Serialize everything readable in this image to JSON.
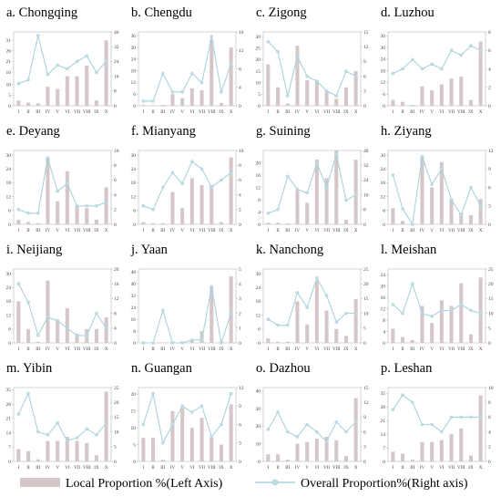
{
  "legend": {
    "bar_label": "Local Proportion %(Left Axis)",
    "line_label": "Overall Proportion%(Right axis)",
    "bar_color": "#d5c7c8",
    "line_color": "#a9d3dc",
    "marker_color": "#c3dde4"
  },
  "chart_data": [
    {
      "type": "bar+line",
      "title": "a. Chongqing",
      "categories": [
        "I",
        "II",
        "III",
        "IV",
        "V",
        "VI",
        "VII",
        "VIII",
        "IX",
        "X"
      ],
      "left_ticks": [
        0,
        5,
        10,
        16,
        21,
        26,
        31
      ],
      "right_ticks": [
        0,
        8,
        16,
        24,
        32,
        40
      ],
      "left_max": 35,
      "right_max": 40,
      "bars": [
        2.5,
        1.5,
        1.2,
        9,
        8,
        14,
        14,
        19,
        2.5,
        31
      ],
      "line": [
        12,
        14,
        38,
        17,
        22,
        20,
        24,
        27,
        18,
        24
      ]
    },
    {
      "type": "bar+line",
      "title": "b. Chengdu",
      "categories": [
        "I",
        "II",
        "III",
        "IV",
        "V",
        "VI",
        "VII",
        "VIII",
        "IX",
        "X"
      ],
      "left_ticks": [
        0,
        6,
        12,
        18,
        24,
        30,
        36
      ],
      "right_ticks": [
        0,
        4,
        8,
        12,
        16
      ],
      "left_max": 38,
      "right_max": 16,
      "bars": [
        0.5,
        0.3,
        0.5,
        6,
        4,
        9,
        8,
        34,
        1.5,
        30
      ],
      "line": [
        1,
        1,
        7,
        3,
        3,
        7,
        5,
        15,
        3,
        9
      ]
    },
    {
      "type": "bar+line",
      "title": "c. Zigong",
      "categories": [
        "I",
        "II",
        "III",
        "IV",
        "V",
        "VI",
        "VII",
        "VIII",
        "IX",
        "X"
      ],
      "left_ticks": [
        0,
        5,
        10,
        15,
        20,
        25,
        30
      ],
      "right_ticks": [
        0,
        3,
        6,
        9,
        12,
        15
      ],
      "left_max": 32,
      "right_max": 15,
      "bars": [
        18,
        8,
        1,
        26,
        11,
        11,
        6,
        3,
        8,
        15
      ],
      "line": [
        13,
        11,
        2,
        10,
        6,
        5,
        3,
        2,
        7,
        6
      ]
    },
    {
      "type": "bar+line",
      "title": "d. Luzhou",
      "categories": [
        "I",
        "II",
        "III",
        "IV",
        "V",
        "VI",
        "VII",
        "VIII",
        "IX",
        "X"
      ],
      "left_ticks": [
        0,
        6,
        12,
        18,
        24,
        30,
        36
      ],
      "right_ticks": [
        0,
        2,
        4,
        6,
        8
      ],
      "left_max": 38,
      "right_max": 8,
      "bars": [
        3,
        2,
        0.5,
        10,
        8,
        11,
        14,
        15,
        3,
        33
      ],
      "line": [
        3.5,
        4,
        5,
        4,
        4.5,
        4,
        6,
        5.5,
        6.5,
        6
      ]
    },
    {
      "type": "bar+line",
      "title": "e. Deyang",
      "categories": [
        "I",
        "II",
        "III",
        "IV",
        "V",
        "VI",
        "VII",
        "VIII",
        "IX",
        "X"
      ],
      "left_ticks": [
        0,
        6,
        12,
        18,
        24,
        30
      ],
      "right_ticks": [
        0,
        2,
        4,
        6,
        8,
        10
      ],
      "left_max": 32,
      "right_max": 10,
      "bars": [
        2,
        1,
        0.5,
        29,
        10,
        23,
        8,
        7,
        2,
        16
      ],
      "line": [
        2,
        1.5,
        1.5,
        9,
        4.5,
        5.5,
        2.5,
        2.5,
        2.5,
        3
      ]
    },
    {
      "type": "bar+line",
      "title": "f. Mianyang",
      "categories": [
        "I",
        "II",
        "III",
        "IV",
        "V",
        "VI",
        "VII",
        "VIII",
        "IX",
        "X"
      ],
      "left_ticks": [
        0,
        6,
        12,
        18,
        24,
        30
      ],
      "right_ticks": [
        0,
        2,
        4,
        6,
        8,
        10
      ],
      "left_max": 32,
      "right_max": 10,
      "bars": [
        1,
        0.5,
        0.5,
        14,
        7,
        20,
        17,
        17,
        1,
        29
      ],
      "line": [
        2.5,
        2,
        5,
        7,
        5.5,
        8.5,
        7.5,
        5,
        6,
        7
      ]
    },
    {
      "type": "bar+line",
      "title": "g. Suining",
      "categories": [
        "I",
        "II",
        "III",
        "IV",
        "V",
        "VI",
        "VII",
        "VIII",
        "IX",
        "X"
      ],
      "left_ticks": [
        0,
        4,
        8,
        12,
        16,
        20
      ],
      "right_ticks": [
        0,
        8,
        16,
        24,
        32,
        40
      ],
      "left_max": 24,
      "right_max": 40,
      "bars": [
        0.5,
        0.5,
        0.3,
        11,
        7,
        21,
        15,
        24,
        1.5,
        21
      ],
      "line": [
        6,
        8,
        26,
        19,
        17,
        33,
        20,
        38,
        13,
        16
      ]
    },
    {
      "type": "bar+line",
      "title": "h. Ziyang",
      "categories": [
        "I",
        "II",
        "III",
        "IV",
        "V",
        "VI",
        "VII",
        "VIII",
        "IX",
        "X"
      ],
      "left_ticks": [
        0,
        6,
        12,
        18,
        24,
        30
      ],
      "right_ticks": [
        0,
        3,
        6,
        9,
        12
      ],
      "left_max": 32,
      "right_max": 12,
      "bars": [
        7,
        1.5,
        0.3,
        29,
        16,
        27,
        11,
        5,
        4,
        11
      ],
      "line": [
        8,
        2.5,
        0,
        11,
        6.5,
        9,
        4,
        1.5,
        6,
        3
      ]
    },
    {
      "type": "bar+line",
      "title": "i. Neijiang",
      "categories": [
        "I",
        "II",
        "III",
        "IV",
        "V",
        "VI",
        "VII",
        "VIII",
        "IX",
        "X"
      ],
      "left_ticks": [
        0,
        6,
        12,
        18,
        24,
        30
      ],
      "right_ticks": [
        0,
        4,
        8,
        12,
        16,
        20
      ],
      "left_max": 32,
      "right_max": 20,
      "bars": [
        18,
        6,
        0.5,
        27,
        10,
        15,
        4,
        6,
        6,
        11
      ],
      "line": [
        16,
        11,
        2,
        7,
        6,
        4,
        2,
        2,
        8,
        4
      ]
    },
    {
      "type": "bar+line",
      "title": "j. Yaan",
      "categories": [
        "I",
        "II",
        "III",
        "IV",
        "V",
        "VI",
        "VII",
        "VIII",
        "IX",
        "X"
      ],
      "left_ticks": [
        0,
        8,
        16,
        24,
        32,
        40,
        48
      ],
      "right_ticks": [
        0,
        1,
        2,
        3,
        4,
        5
      ],
      "left_max": 50,
      "right_max": 5,
      "bars": [
        0.5,
        0.3,
        0.3,
        1,
        1,
        2,
        8,
        38,
        1,
        45
      ],
      "line": [
        0,
        0,
        2.2,
        0,
        0,
        0.2,
        0.2,
        3.8,
        0,
        2
      ]
    },
    {
      "type": "bar+line",
      "title": "k. Nanchong",
      "categories": [
        "I",
        "II",
        "III",
        "IV",
        "V",
        "VI",
        "VII",
        "VIII",
        "IX",
        "X"
      ],
      "left_ticks": [
        0,
        6,
        12,
        18,
        24,
        30
      ],
      "right_ticks": [
        0,
        5,
        10,
        15,
        20,
        25
      ],
      "left_max": 32,
      "right_max": 25,
      "bars": [
        2,
        0.5,
        0.5,
        18,
        8,
        27,
        14,
        6,
        3,
        19
      ],
      "line": [
        8,
        6,
        6,
        17,
        12,
        22,
        16,
        7,
        10,
        10
      ]
    },
    {
      "type": "bar+line",
      "title": "l. Meishan",
      "categories": [
        "I",
        "II",
        "III",
        "IV",
        "V",
        "VI",
        "VII",
        "VIII",
        "IX",
        "X"
      ],
      "left_ticks": [
        0,
        4,
        8,
        12,
        16,
        20,
        24
      ],
      "right_ticks": [
        0,
        5,
        10,
        15,
        20,
        25
      ],
      "left_max": 26,
      "right_max": 25,
      "bars": [
        5,
        2,
        1,
        13,
        7,
        15,
        13,
        21,
        3,
        23
      ],
      "line": [
        13,
        10,
        20,
        10,
        9,
        11,
        11,
        13,
        11,
        10
      ]
    },
    {
      "type": "bar+line",
      "title": "m. Yibin",
      "categories": [
        "I",
        "II",
        "III",
        "IV",
        "V",
        "VI",
        "VII",
        "VIII",
        "IX",
        "X"
      ],
      "left_ticks": [
        0,
        7,
        14,
        21,
        28,
        35
      ],
      "right_ticks": [
        0,
        5,
        10,
        15,
        20,
        25
      ],
      "left_max": 36,
      "right_max": 25,
      "bars": [
        6,
        5,
        1,
        10,
        10,
        12,
        10,
        9,
        3,
        34
      ],
      "line": [
        16,
        23,
        10,
        9,
        13,
        7,
        8,
        11,
        9,
        13
      ]
    },
    {
      "type": "bar+line",
      "title": "n. Guangan",
      "categories": [
        "I",
        "II",
        "III",
        "IV",
        "V",
        "VI",
        "VII",
        "VIII",
        "IX",
        "X"
      ],
      "left_ticks": [
        0,
        5,
        10,
        15,
        20
      ],
      "right_ticks": [
        0,
        3,
        6,
        9,
        12
      ],
      "left_max": 22,
      "right_max": 12,
      "bars": [
        7,
        7,
        0.5,
        15,
        16,
        10,
        13,
        7,
        5,
        17
      ],
      "line": [
        6,
        11,
        3,
        6,
        9,
        8,
        9,
        4,
        6,
        11
      ]
    },
    {
      "type": "bar+line",
      "title": "o. Dazhou",
      "categories": [
        "I",
        "II",
        "III",
        "IV",
        "V",
        "VI",
        "VII",
        "VIII",
        "IX",
        "X"
      ],
      "left_ticks": [
        0,
        10,
        20,
        30,
        40
      ],
      "right_ticks": [
        0,
        3,
        6,
        9,
        12,
        15
      ],
      "left_max": 42,
      "right_max": 15,
      "bars": [
        4,
        4,
        1,
        10,
        11,
        13,
        14,
        12,
        3,
        36
      ],
      "line": [
        6.5,
        10,
        6,
        5,
        7.5,
        6,
        4,
        8,
        6,
        8
      ]
    },
    {
      "type": "bar+line",
      "title": "p. Leshan",
      "categories": [
        "I",
        "II",
        "III",
        "IV",
        "V",
        "VI",
        "VII",
        "VIII",
        "IX",
        "X"
      ],
      "left_ticks": [
        0,
        7,
        14,
        21,
        28,
        35
      ],
      "right_ticks": [
        0,
        2,
        4,
        6,
        8,
        10
      ],
      "left_max": 38,
      "right_max": 10,
      "bars": [
        5,
        4,
        1,
        10,
        10,
        11,
        14,
        17,
        3,
        34
      ],
      "line": [
        7,
        9,
        8,
        5,
        5,
        4,
        6,
        6,
        6,
        6
      ]
    }
  ]
}
